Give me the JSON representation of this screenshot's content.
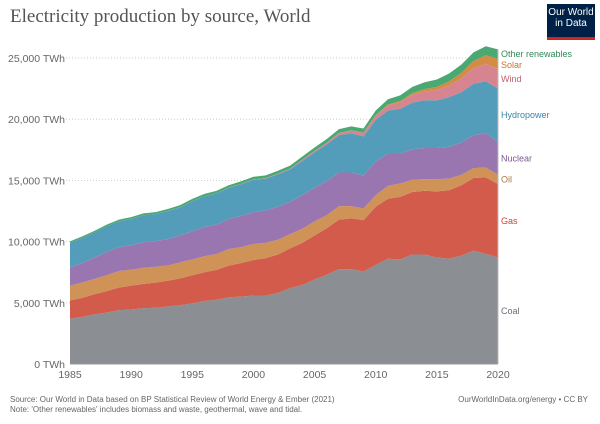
{
  "chart_data": {
    "type": "area",
    "stacked": true,
    "title": "Electricity production by source, World",
    "xlabel": "",
    "ylabel": "",
    "unit": "TWh",
    "x": [
      1985,
      1986,
      1987,
      1988,
      1989,
      1990,
      1991,
      1992,
      1993,
      1994,
      1995,
      1996,
      1997,
      1998,
      1999,
      2000,
      2001,
      2002,
      2003,
      2004,
      2005,
      2006,
      2007,
      2008,
      2009,
      2010,
      2011,
      2012,
      2013,
      2014,
      2015,
      2016,
      2017,
      2018,
      2019,
      2020
    ],
    "xlim": [
      1985,
      2020
    ],
    "ylim": [
      0,
      25000
    ],
    "x_ticks": [
      "1985",
      "1990",
      "1995",
      "2000",
      "2005",
      "2010",
      "2015",
      "2020"
    ],
    "y_ticks": [
      "0 TWh",
      "5,000 TWh",
      "10,000 TWh",
      "15,000 TWh",
      "20,000 TWh",
      "25,000 TWh"
    ],
    "grid": "horizontal-dotted",
    "legend": "right-inline",
    "series": [
      {
        "name": "Coal",
        "color": "#8b8e92",
        "label_color": "#6b6e72",
        "values": [
          3700,
          3850,
          4050,
          4200,
          4400,
          4450,
          4550,
          4600,
          4700,
          4800,
          4950,
          5150,
          5250,
          5450,
          5500,
          5600,
          5600,
          5800,
          6200,
          6450,
          6900,
          7300,
          7750,
          7750,
          7550,
          8100,
          8600,
          8550,
          8950,
          8950,
          8700,
          8600,
          8850,
          9250,
          9000,
          8700
        ]
      },
      {
        "name": "Gas",
        "color": "#d35b4c",
        "label_color": "#c84434",
        "values": [
          1500,
          1550,
          1650,
          1750,
          1850,
          1950,
          2000,
          2050,
          2100,
          2200,
          2300,
          2350,
          2450,
          2600,
          2750,
          2900,
          3050,
          3150,
          3250,
          3450,
          3600,
          3800,
          4050,
          4150,
          4200,
          4750,
          4900,
          5100,
          5100,
          5200,
          5400,
          5600,
          5750,
          5950,
          6250,
          6000
        ]
      },
      {
        "name": "Oil",
        "color": "#cf9257",
        "label_color": "#a87a40",
        "values": [
          1200,
          1250,
          1250,
          1300,
          1350,
          1300,
          1300,
          1300,
          1250,
          1300,
          1300,
          1300,
          1300,
          1350,
          1300,
          1300,
          1250,
          1200,
          1150,
          1150,
          1150,
          1050,
          1100,
          1000,
          950,
          950,
          1050,
          1100,
          1000,
          950,
          1000,
          950,
          850,
          800,
          800,
          750
        ]
      },
      {
        "name": "Nuclear",
        "color": "#9a76b0",
        "label_color": "#7b5a94",
        "values": [
          1500,
          1600,
          1750,
          1900,
          1950,
          2000,
          2100,
          2100,
          2150,
          2200,
          2300,
          2400,
          2400,
          2450,
          2550,
          2600,
          2650,
          2700,
          2650,
          2750,
          2750,
          2800,
          2750,
          2750,
          2700,
          2750,
          2650,
          2450,
          2500,
          2550,
          2550,
          2600,
          2650,
          2700,
          2800,
          2700
        ]
      },
      {
        "name": "Hydropower",
        "color": "#539cba",
        "label_color": "#3b84a6",
        "values": [
          2000,
          2050,
          2050,
          2100,
          2100,
          2150,
          2200,
          2200,
          2300,
          2300,
          2450,
          2500,
          2550,
          2550,
          2600,
          2650,
          2600,
          2650,
          2650,
          2800,
          2900,
          3000,
          3050,
          3200,
          3200,
          3400,
          3500,
          3650,
          3800,
          3900,
          3900,
          4050,
          4100,
          4200,
          4250,
          4350
        ]
      },
      {
        "name": "Wind",
        "color": "#d6848f",
        "label_color": "#c8606e",
        "values": [
          0,
          0,
          0,
          0,
          1,
          4,
          4,
          5,
          6,
          7,
          8,
          9,
          12,
          16,
          21,
          31,
          38,
          52,
          63,
          85,
          104,
          133,
          170,
          221,
          276,
          342,
          436,
          524,
          636,
          712,
          832,
          960,
          1130,
          1270,
          1420,
          1590
        ]
      },
      {
        "name": "Solar",
        "color": "#d38c45",
        "label_color": "#c47528",
        "values": [
          0,
          0,
          0,
          0,
          0,
          0,
          0,
          0,
          0,
          0,
          0,
          0,
          0,
          0,
          0,
          1,
          1,
          2,
          2,
          3,
          4,
          6,
          8,
          12,
          20,
          34,
          64,
          100,
          140,
          198,
          260,
          330,
          450,
          580,
          700,
          840
        ]
      },
      {
        "name": "Other renewables",
        "color": "#4ba872",
        "label_color": "#2f8a55",
        "values": [
          120,
          125,
          130,
          135,
          140,
          145,
          150,
          155,
          160,
          170,
          180,
          185,
          190,
          195,
          205,
          215,
          220,
          230,
          245,
          265,
          280,
          295,
          310,
          330,
          345,
          380,
          430,
          470,
          510,
          560,
          600,
          640,
          680,
          710,
          740,
          770
        ]
      }
    ]
  },
  "logo": {
    "line1": "Our World",
    "line2": "in Data"
  },
  "footer": {
    "source": "Source: Our World in Data based on BP Statistical Review of World Energy & Ember (2021)",
    "note": "Note: 'Other renewables' includes biomass and waste, geothermal, wave and tidal.",
    "credit": "OurWorldInData.org/energy • CC BY"
  }
}
